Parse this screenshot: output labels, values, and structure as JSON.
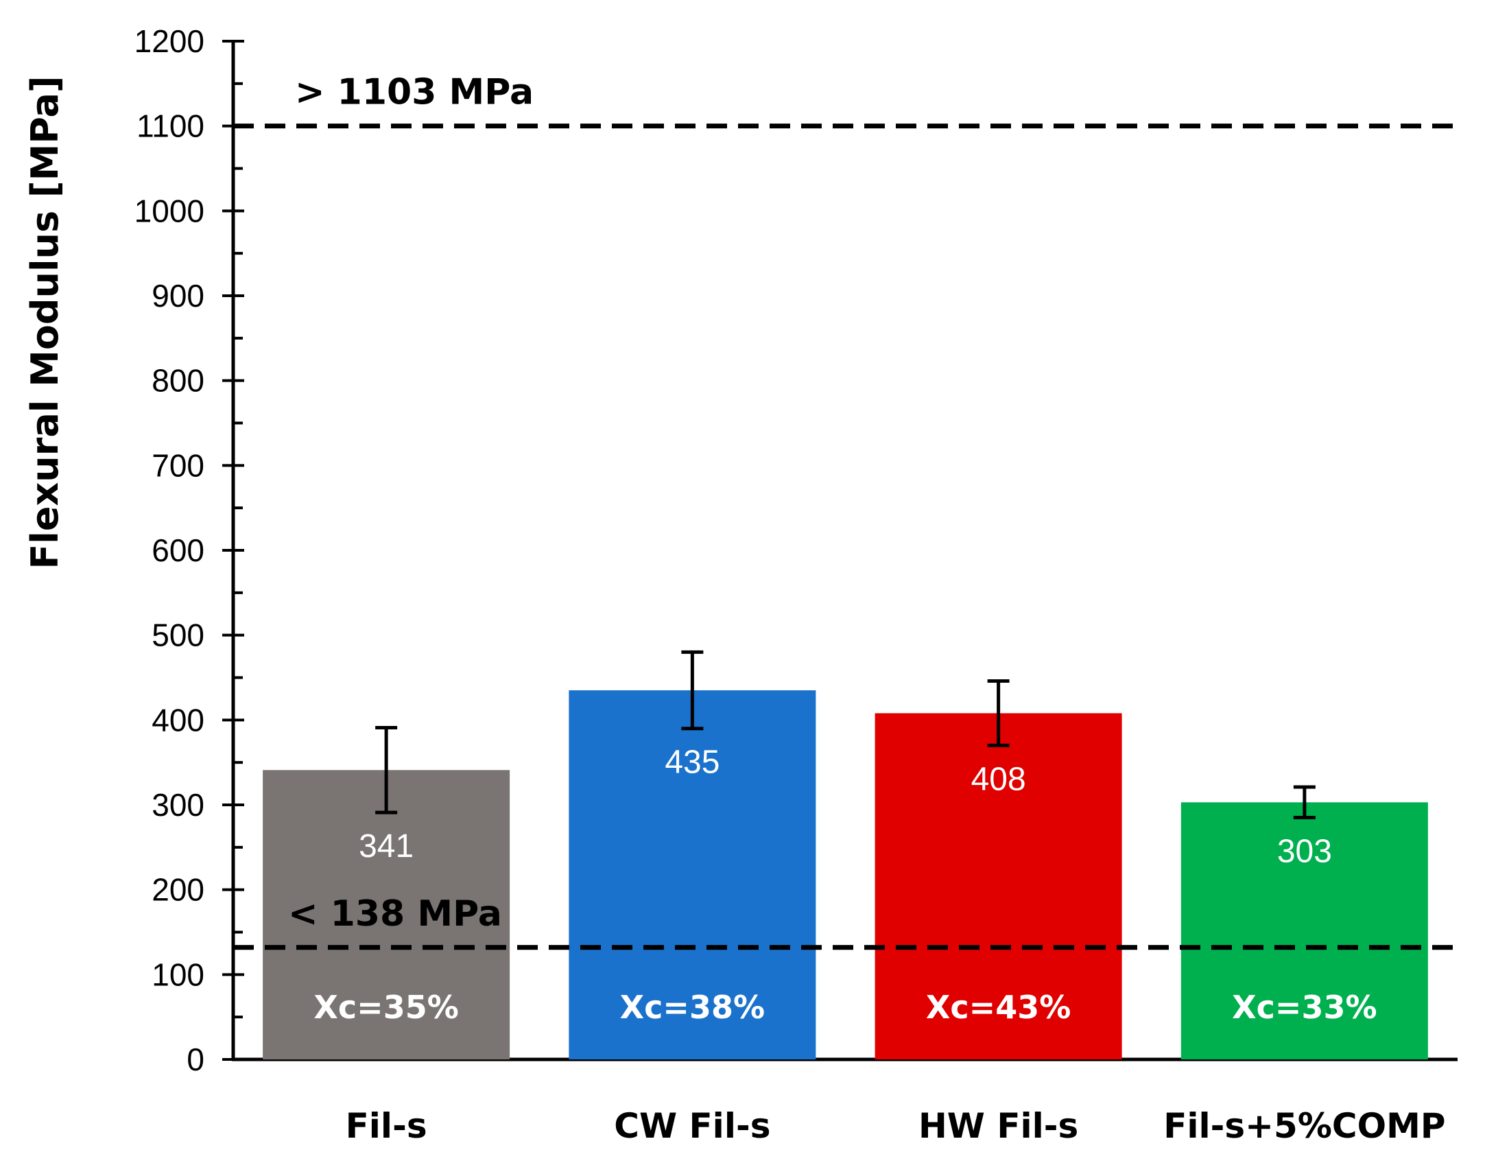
{
  "chart_data": {
    "type": "bar",
    "title": "",
    "xlabel": "",
    "ylabel": "Flexural Modulus [MPa]",
    "ylim": [
      0,
      1200
    ],
    "yticks": [
      0,
      100,
      200,
      300,
      400,
      500,
      600,
      700,
      800,
      900,
      1000,
      1100,
      1200
    ],
    "grid": false,
    "legend": "none",
    "categories": [
      "Fil-s",
      "CW Fil-s",
      "HW Fil-s",
      "Fil-s+5%COMP"
    ],
    "values": [
      341,
      435,
      408,
      303
    ],
    "value_labels": [
      "341",
      "435",
      "408",
      "303"
    ],
    "error": [
      50,
      45,
      38,
      18
    ],
    "crystallinity_labels": [
      "Xc=35%",
      "Xc=38%",
      "Xc=43%",
      "Xc=33%"
    ],
    "colors": [
      "#7a7473",
      "#1a72cc",
      "#e00000",
      "#00b04f"
    ],
    "reference_lines": [
      {
        "value": 1100,
        "label": "> 1103 MPa"
      },
      {
        "value": 132,
        "label": "< 138 MPa"
      }
    ]
  }
}
